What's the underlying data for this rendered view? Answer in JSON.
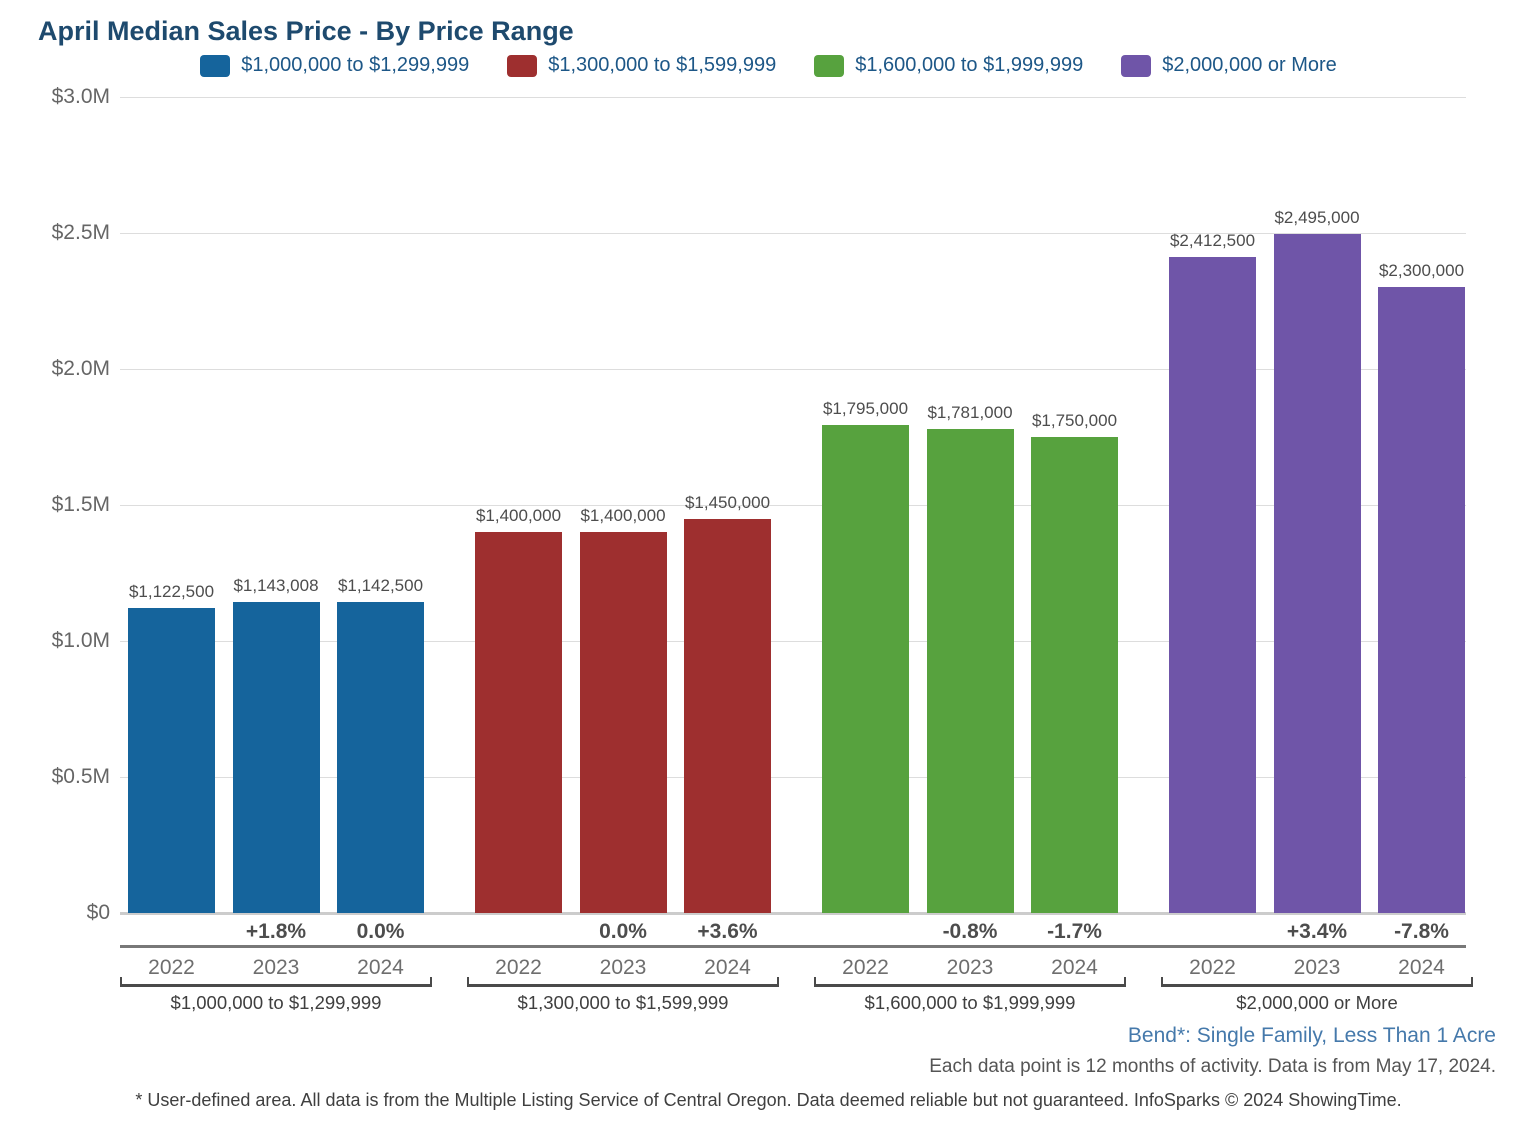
{
  "title": "April Median Sales Price - By Price Range",
  "legend": [
    {
      "label": "$1,000,000 to $1,299,999",
      "color": "#15649c"
    },
    {
      "label": "$1,300,000 to $1,599,999",
      "color": "#9e2f2f"
    },
    {
      "label": "$1,600,000 to $1,999,999",
      "color": "#57a23e"
    },
    {
      "label": "$2,000,000 or More",
      "color": "#6f55a8"
    }
  ],
  "chart_data": {
    "type": "bar",
    "title": "April Median Sales Price - By Price Range",
    "categories": [
      "2022",
      "2023",
      "2024"
    ],
    "ylim": [
      0,
      3000000
    ],
    "ytick_values": [
      0,
      500000,
      1000000,
      1500000,
      2000000,
      2500000,
      3000000
    ],
    "ytick_labels": [
      "$0",
      "$0.5M",
      "$1.0M",
      "$1.5M",
      "$2.0M",
      "$2.5M",
      "$3.0M"
    ],
    "grid": true,
    "legend_position": "top",
    "series": [
      {
        "name": "$1,000,000 to $1,299,999",
        "color": "#15649c",
        "values": [
          1122500,
          1143008,
          1142500
        ],
        "value_labels": [
          "$1,122,500",
          "$1,143,008",
          "$1,142,500"
        ],
        "pct_change": [
          null,
          "+1.8%",
          "0.0%"
        ]
      },
      {
        "name": "$1,300,000 to $1,599,999",
        "color": "#9e2f2f",
        "values": [
          1400000,
          1400000,
          1450000
        ],
        "value_labels": [
          "$1,400,000",
          "$1,400,000",
          "$1,450,000"
        ],
        "pct_change": [
          null,
          "0.0%",
          "+3.6%"
        ]
      },
      {
        "name": "$1,600,000 to $1,999,999",
        "color": "#57a23e",
        "values": [
          1795000,
          1781000,
          1750000
        ],
        "value_labels": [
          "$1,795,000",
          "$1,781,000",
          "$1,750,000"
        ],
        "pct_change": [
          null,
          "-0.8%",
          "-1.7%"
        ]
      },
      {
        "name": "$2,000,000 or More",
        "color": "#6f55a8",
        "values": [
          2412500,
          2495000,
          2300000
        ],
        "value_labels": [
          "$2,412,500",
          "$2,495,000",
          "$2,300,000"
        ],
        "pct_change": [
          null,
          "+3.4%",
          "-7.8%"
        ]
      }
    ]
  },
  "footer": {
    "area_label": "Bend*: Single Family, Less Than 1 Acre",
    "data_note": "Each data point is 12 months of activity. Data is from May 17, 2024.",
    "disclaimer": "* User-defined area. All data is from the Multiple Listing Service of Central Oregon. Data deemed reliable but not guaranteed. InfoSparks © 2024 ShowingTime."
  }
}
